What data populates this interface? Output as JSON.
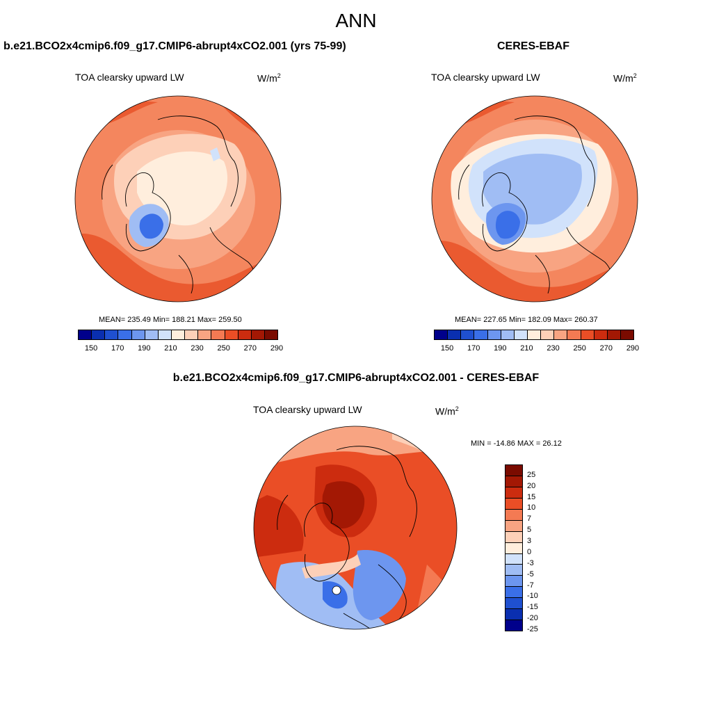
{
  "title": "ANN",
  "panels": {
    "model": {
      "heading": "b.e21.BCO2x4cmip6.f09_g17.CMIP6-abrupt4xCO2.001 (yrs 75-99)",
      "variable": "TOA clearsky upward LW",
      "units_base": "W/m",
      "units_exp": "2",
      "stats": "MEAN= 235.49  Min= 188.21  Max= 259.50"
    },
    "obs": {
      "heading": "CERES-EBAF",
      "variable": "TOA clearsky upward LW",
      "units_base": "W/m",
      "units_exp": "2",
      "stats": "MEAN= 227.65  Min= 182.09  Max= 260.37"
    },
    "diff": {
      "heading": "b.e21.BCO2x4cmip6.f09_g17.CMIP6-abrupt4xCO2.001 - CERES-EBAF",
      "variable": "TOA clearsky upward LW",
      "units": "W/m",
      "units_exp": "2",
      "stats": "MIN = -14.86 MAX =  26.12"
    }
  },
  "colorbar_abs": {
    "colors": [
      "#00008b",
      "#0a2fb0",
      "#1f50d0",
      "#3a6fe8",
      "#6d96ef",
      "#a0bdf4",
      "#d1e2fb",
      "#ffeedd",
      "#fdd0b8",
      "#f8a482",
      "#f47a53",
      "#ea4e26",
      "#cc2c0f",
      "#a31804",
      "#7a0b00"
    ],
    "ticks": [
      "150",
      "170",
      "190",
      "210",
      "230",
      "250",
      "270",
      "290"
    ]
  },
  "colorbar_diff": {
    "colors": [
      "#7a0b00",
      "#a31804",
      "#cc2c0f",
      "#ea4e26",
      "#f47a53",
      "#f8a482",
      "#fdd0b8",
      "#ffeedd",
      "#d1e2fb",
      "#a0bdf4",
      "#6d96ef",
      "#3a6fe8",
      "#1f50d0",
      "#0a2fb0",
      "#00008b"
    ],
    "ticks": [
      "25",
      "20",
      "15",
      "10",
      "7",
      "5",
      "3",
      "0",
      "-3",
      "-5",
      "-7",
      "-10",
      "-15",
      "-20",
      "-25"
    ]
  }
}
